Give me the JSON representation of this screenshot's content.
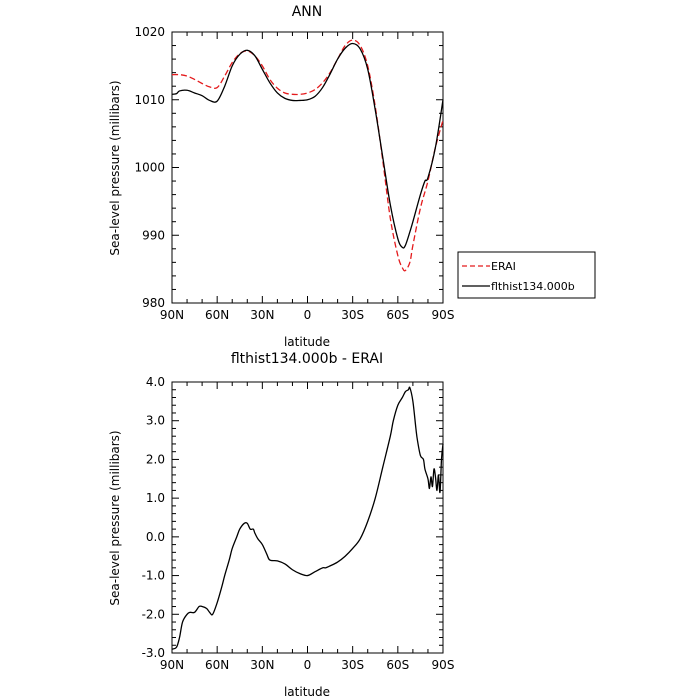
{
  "chart_data": [
    {
      "type": "line",
      "title": "ANN",
      "xlabel": "latitude",
      "ylabel": "Sea-level pressure (millibars)",
      "xlim": [
        90,
        -90
      ],
      "ylim": [
        980,
        1020
      ],
      "x_ticks": [
        90,
        60,
        30,
        0,
        -30,
        -60,
        -90
      ],
      "x_tick_labels": [
        "90N",
        "60N",
        "30N",
        "0",
        "30S",
        "60S",
        "90S"
      ],
      "y_ticks": [
        980,
        990,
        1000,
        1010,
        1020
      ],
      "y_tick_labels": [
        "980",
        "990",
        "1000",
        "1010",
        "1020"
      ],
      "legend_placement": "right",
      "series": [
        {
          "name": "ERAI",
          "color": "#e41a1c",
          "style": "dashed",
          "x": [
            90,
            85,
            80,
            75,
            70,
            65,
            60,
            55,
            50,
            45,
            40,
            35,
            30,
            25,
            20,
            15,
            10,
            5,
            0,
            -5,
            -10,
            -15,
            -20,
            -25,
            -30,
            -35,
            -40,
            -45,
            -50,
            -55,
            -60,
            -63,
            -65,
            -68,
            -70,
            -75,
            -80,
            -85,
            -90
          ],
          "y": [
            1013.7,
            1013.7,
            1013.5,
            1013.0,
            1012.4,
            1011.9,
            1011.8,
            1013.5,
            1015.5,
            1016.8,
            1017.2,
            1016.5,
            1015.0,
            1013.0,
            1011.7,
            1011.0,
            1010.8,
            1010.8,
            1011.0,
            1011.5,
            1012.5,
            1014.0,
            1016.0,
            1018.0,
            1018.8,
            1018.0,
            1015.0,
            1009.0,
            1001.0,
            992.5,
            987.0,
            985.2,
            984.8,
            986.0,
            988.5,
            994.0,
            998.0,
            1003.0,
            1007.0
          ]
        },
        {
          "name": "flthist134.000b",
          "color": "#000000",
          "style": "solid",
          "x": [
            90,
            87,
            85,
            80,
            75,
            70,
            65,
            60,
            55,
            50,
            45,
            40,
            35,
            30,
            25,
            20,
            15,
            10,
            5,
            0,
            -5,
            -10,
            -15,
            -20,
            -25,
            -30,
            -35,
            -40,
            -45,
            -50,
            -55,
            -60,
            -63,
            -65,
            -68,
            -70,
            -75,
            -78,
            -80,
            -85,
            -90
          ],
          "y": [
            1010.8,
            1010.9,
            1011.3,
            1011.4,
            1011.0,
            1010.6,
            1009.9,
            1009.8,
            1012.0,
            1015.0,
            1016.7,
            1017.3,
            1016.5,
            1014.5,
            1012.5,
            1011.0,
            1010.2,
            1009.9,
            1009.9,
            1010.0,
            1010.5,
            1011.8,
            1013.8,
            1016.0,
            1017.6,
            1018.3,
            1017.5,
            1014.5,
            1008.5,
            1001.5,
            994.5,
            989.5,
            988.2,
            988.5,
            990.5,
            992.0,
            996.0,
            998.0,
            998.5,
            1003.0,
            1010.0
          ]
        }
      ]
    },
    {
      "type": "line",
      "title": "flthist134.000b - ERAI",
      "xlabel": "latitude",
      "ylabel": "Sea-level pressure (millibars)",
      "xlim": [
        90,
        -90
      ],
      "ylim": [
        -3.0,
        4.0
      ],
      "x_ticks": [
        90,
        60,
        30,
        0,
        -30,
        -60,
        -90
      ],
      "x_tick_labels": [
        "90N",
        "60N",
        "30N",
        "0",
        "30S",
        "60S",
        "90S"
      ],
      "y_ticks": [
        -3.0,
        -2.0,
        -1.0,
        0.0,
        1.0,
        2.0,
        3.0,
        4.0
      ],
      "y_tick_labels": [
        "-3.0",
        "-2.0",
        "-1.0",
        "0.0",
        "1.0",
        "2.0",
        "3.0",
        "4.0"
      ],
      "series": [
        {
          "color": "#000000",
          "style": "solid",
          "x": [
            90,
            87,
            85,
            83,
            80,
            78,
            75,
            72,
            70,
            67,
            65,
            63,
            60,
            57,
            55,
            52,
            50,
            47,
            45,
            42,
            40,
            38,
            36,
            35,
            33,
            30,
            27,
            25,
            20,
            15,
            10,
            5,
            0,
            -5,
            -10,
            -12,
            -15,
            -20,
            -25,
            -30,
            -35,
            -40,
            -45,
            -50,
            -55,
            -57,
            -60,
            -63,
            -65,
            -67,
            -68,
            -70,
            -72,
            -73,
            -75,
            -77,
            -78,
            -80,
            -81,
            -82,
            -83,
            -84,
            -85,
            -86,
            -87,
            -88,
            -89,
            -90
          ],
          "y": [
            -2.9,
            -2.85,
            -2.6,
            -2.2,
            -2.0,
            -1.95,
            -1.95,
            -1.8,
            -1.8,
            -1.85,
            -1.95,
            -2.0,
            -1.7,
            -1.3,
            -1.0,
            -0.6,
            -0.3,
            0.0,
            0.2,
            0.35,
            0.35,
            0.2,
            0.2,
            0.1,
            -0.05,
            -0.2,
            -0.45,
            -0.6,
            -0.62,
            -0.7,
            -0.85,
            -0.95,
            -1.0,
            -0.9,
            -0.8,
            -0.8,
            -0.75,
            -0.65,
            -0.5,
            -0.3,
            -0.05,
            0.4,
            1.0,
            1.8,
            2.6,
            3.0,
            3.4,
            3.6,
            3.75,
            3.8,
            3.85,
            3.5,
            2.8,
            2.5,
            2.1,
            2.0,
            1.75,
            1.5,
            1.25,
            1.55,
            1.3,
            1.75,
            1.55,
            1.2,
            1.6,
            1.15,
            2.0,
            2.4
          ]
        }
      ]
    }
  ]
}
